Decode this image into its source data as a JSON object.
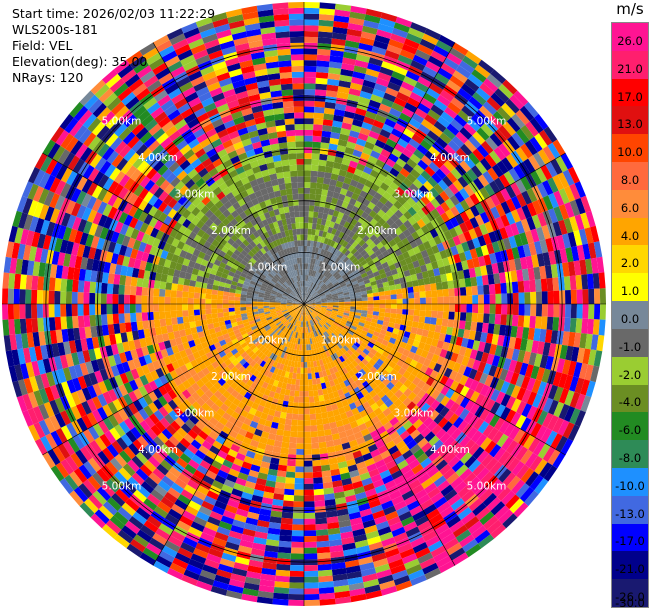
{
  "header": {
    "start_time": "Start time: 2026/02/03 11:22:29",
    "instrument": "WLS200s-181",
    "field": "Field: VEL",
    "elevation": "Elevation(deg): 35.00",
    "nrays": "NRays: 120"
  },
  "colorbar": {
    "unit": "m/s",
    "ticks": [
      "26.0",
      "21.0",
      "17.0",
      "13.0",
      "10.0",
      "8.0",
      "6.0",
      "4.0",
      "2.0",
      "1.0",
      "0.0",
      "-1.0",
      "-2.0",
      "-4.0",
      "-6.0",
      "-8.0",
      "-10.0",
      "-13.0",
      "-17.0",
      "-21.0",
      "-26.0",
      "-30.0"
    ],
    "band_colors": [
      "#ff1493",
      "#ff1f6e",
      "#ff0000",
      "#e01010",
      "#ff4500",
      "#ff6a3d",
      "#ff8c3a",
      "#ffa500",
      "#ffd700",
      "#ffff00",
      "#778899",
      "#696969",
      "#9acd32",
      "#6b8e23",
      "#228b22",
      "#2e8b57",
      "#1e90ff",
      "#4169e1",
      "#0000ff",
      "#00008b",
      "#191970"
    ]
  },
  "chart_data": {
    "type": "heatmap",
    "subtype": "polar-ppi",
    "field": "VEL",
    "unit": "m/s",
    "elevation_deg": 35.0,
    "n_rays": 120,
    "range_rings_km": [
      1.0,
      2.0,
      3.0,
      4.0,
      5.0
    ],
    "ring_labels": [
      "1.00km",
      "2.00km",
      "3.00km",
      "4.00km",
      "5.00km"
    ],
    "max_range_km": 5.85,
    "color_scale": [
      -30,
      -26,
      -21,
      -17,
      -13,
      -10,
      -8,
      -6,
      -4,
      -2,
      -1,
      0,
      1,
      2,
      4,
      6,
      8,
      10,
      13,
      17,
      21,
      26
    ],
    "near_field_pattern": {
      "north_sector": "negative (-1 to -6 m/s, greens/grays)",
      "south_sector": "positive (2 to 6 m/s, yellow/orange)",
      "outer_range": "noise (full color range)"
    }
  }
}
